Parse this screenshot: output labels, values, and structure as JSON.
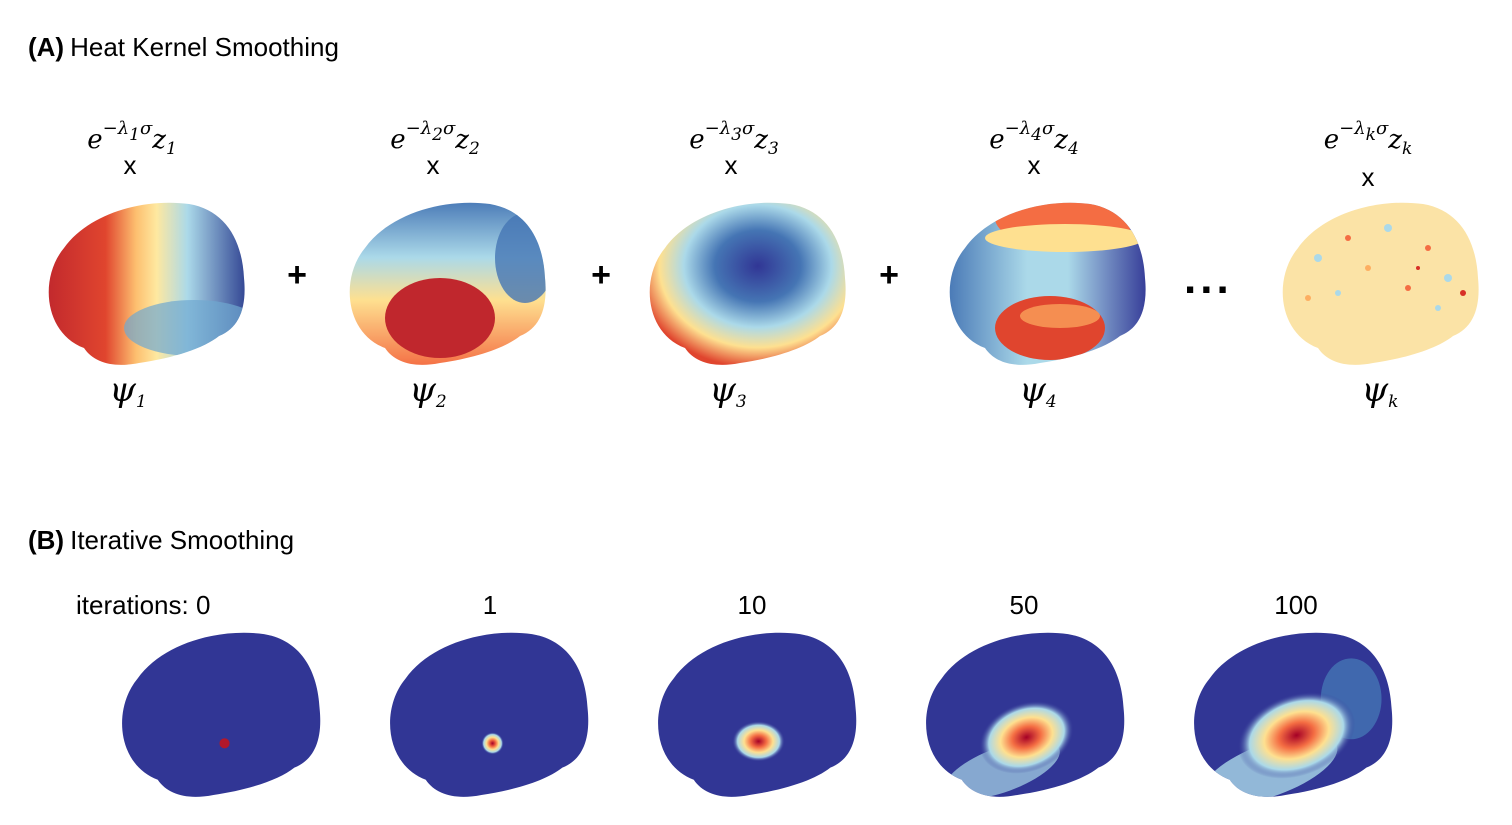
{
  "sectionA": {
    "tag": "(A)",
    "title": "Heat Kernel Smoothing",
    "terms": [
      {
        "exp_sub": "1",
        "z_sub": "1",
        "psi_sub": "1",
        "times": "x"
      },
      {
        "exp_sub": "2",
        "z_sub": "2",
        "psi_sub": "2",
        "times": "x"
      },
      {
        "exp_sub": "3",
        "z_sub": "3",
        "psi_sub": "3",
        "times": "x"
      },
      {
        "exp_sub": "4",
        "z_sub": "4",
        "psi_sub": "4",
        "times": "x"
      },
      {
        "exp_sub": "k",
        "z_sub": "k",
        "psi_sub": "k",
        "times": "x"
      }
    ],
    "plus": "+",
    "ellipsis": "..."
  },
  "sectionB": {
    "tag": "(B)",
    "title": "Iterative Smoothing",
    "iterations_prefix": "iterations:",
    "iterations": [
      "0",
      "1",
      "10",
      "50",
      "100"
    ]
  },
  "colors": {
    "red": "#b2182b",
    "orange": "#f46d43",
    "yellow": "#fee090",
    "light-blue": "#abd9e9",
    "blue": "#4575b4",
    "dark-blue": "#313695"
  }
}
